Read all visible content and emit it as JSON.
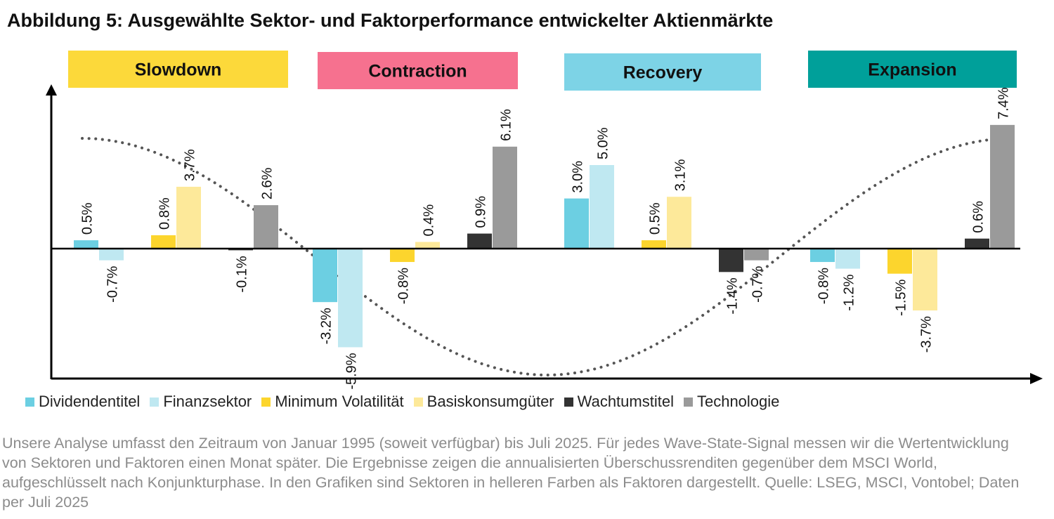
{
  "title": "Abbildung 5: Ausgewählte Sektor- und Faktorperformance entwickelter Aktienmärkte",
  "footnote": "Unsere Analyse umfasst den Zeitraum von Januar 1995 (soweit verfügbar) bis Juli 2025. Für jedes Wave-State-Signal messen wir die Wertentwicklung von Sektoren und Faktoren einen Monat später. Die Ergebnisse zeigen die annualisierten Überschussrenditen gegenüber dem MSCI World, aufgeschlüsselt nach Konjunkturphase. In den Grafiken sind Sektoren in helleren Farben als Faktoren dargestellt. Quelle: LSEG, MSCI, Vontobel; Daten per Juli 2025",
  "chart_data": {
    "type": "bar",
    "phases": [
      {
        "name": "Slowdown",
        "color": "#fcd93a"
      },
      {
        "name": "Contraction",
        "color": "#f6718f"
      },
      {
        "name": "Recovery",
        "color": "#7dd3e6"
      },
      {
        "name": "Expansion",
        "color": "#00a09a"
      }
    ],
    "series": [
      {
        "name": "Dividendentitel",
        "color": "#6ccfe2"
      },
      {
        "name": "Finanzsektor",
        "color": "#bfe8f1"
      },
      {
        "name": "Minimum Volatilität",
        "color": "#fcd52d"
      },
      {
        "name": "Basiskonsumgüter",
        "color": "#fde99a"
      },
      {
        "name": "Wachtumstitel",
        "color": "#333333"
      },
      {
        "name": "Technologie",
        "color": "#9a9a9a"
      }
    ],
    "groups": [
      {
        "phase": "Slowdown",
        "bars": [
          {
            "series": "Dividendentitel",
            "value": 0.5,
            "label": "0.5%"
          },
          {
            "series": "Finanzsektor",
            "value": -0.7,
            "label": "-0.7%"
          },
          {
            "series": "Minimum Volatilität",
            "value": 0.8,
            "label": "0.8%"
          },
          {
            "series": "Basiskonsumgüter",
            "value": 3.7,
            "label": "3.7%"
          },
          {
            "series": "Wachtumstitel",
            "value": -0.1,
            "label": "-0.1%"
          },
          {
            "series": "Technologie",
            "value": 2.6,
            "label": "2.6%"
          }
        ]
      },
      {
        "phase": "Contraction",
        "bars": [
          {
            "series": "Dividendentitel",
            "value": -3.2,
            "label": "-3.2%"
          },
          {
            "series": "Finanzsektor",
            "value": -5.9,
            "label": "-5.9%"
          },
          {
            "series": "Minimum Volatilität",
            "value": -0.8,
            "label": "-0.8%"
          },
          {
            "series": "Basiskonsumgüter",
            "value": 0.4,
            "label": "0.4%"
          },
          {
            "series": "Wachtumstitel",
            "value": 0.9,
            "label": "0.9%"
          },
          {
            "series": "Technologie",
            "value": 6.1,
            "label": "6.1%"
          }
        ]
      },
      {
        "phase": "Recovery",
        "bars": [
          {
            "series": "Dividendentitel",
            "value": 3.0,
            "label": "3.0%"
          },
          {
            "series": "Finanzsektor",
            "value": 5.0,
            "label": "5.0%"
          },
          {
            "series": "Minimum Volatilität",
            "value": 0.5,
            "label": "0.5%"
          },
          {
            "series": "Basiskonsumgüter",
            "value": 3.1,
            "label": "3.1%"
          },
          {
            "series": "Wachtumstitel",
            "value": -1.4,
            "label": "-1.4%"
          },
          {
            "series": "Technologie",
            "value": -0.7,
            "label": "-0.7%"
          }
        ]
      },
      {
        "phase": "Expansion",
        "bars": [
          {
            "series": "Dividendentitel",
            "value": -0.8,
            "label": "-0.8%"
          },
          {
            "series": "Finanzsektor",
            "value": -1.2,
            "label": "-1.2%"
          },
          {
            "series": "Minimum Volatilität",
            "value": -1.5,
            "label": "-1.5%"
          },
          {
            "series": "Basiskonsumgüter",
            "value": -3.7,
            "label": "-3.7%"
          },
          {
            "series": "Wachtumstitel",
            "value": 0.6,
            "label": "0.6%"
          },
          {
            "series": "Technologie",
            "value": 7.4,
            "label": "7.4%"
          }
        ]
      }
    ],
    "cycle_curve": "dotted sine wave (decline through Slowdown/Contraction, trough, rise through Recovery/Expansion)",
    "legend_position": "bottom",
    "grid": false
  }
}
